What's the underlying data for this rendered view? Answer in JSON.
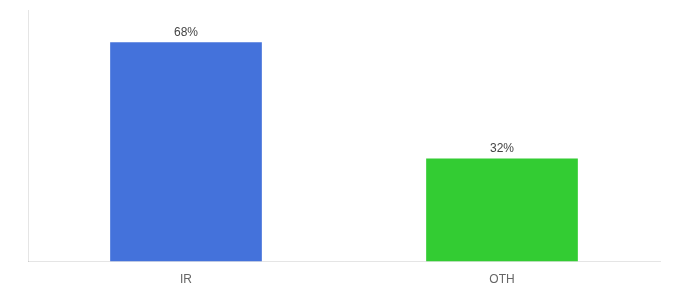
{
  "chart_data": {
    "type": "bar",
    "categories": [
      "IR",
      "OTH"
    ],
    "values": [
      68,
      32
    ],
    "colors": [
      "#4472db",
      "#33cc33"
    ],
    "data_labels": true,
    "value_labels": [
      "68%",
      "32%"
    ],
    "ylim": [
      0,
      78
    ],
    "tick_labels": "x",
    "grid": false
  }
}
